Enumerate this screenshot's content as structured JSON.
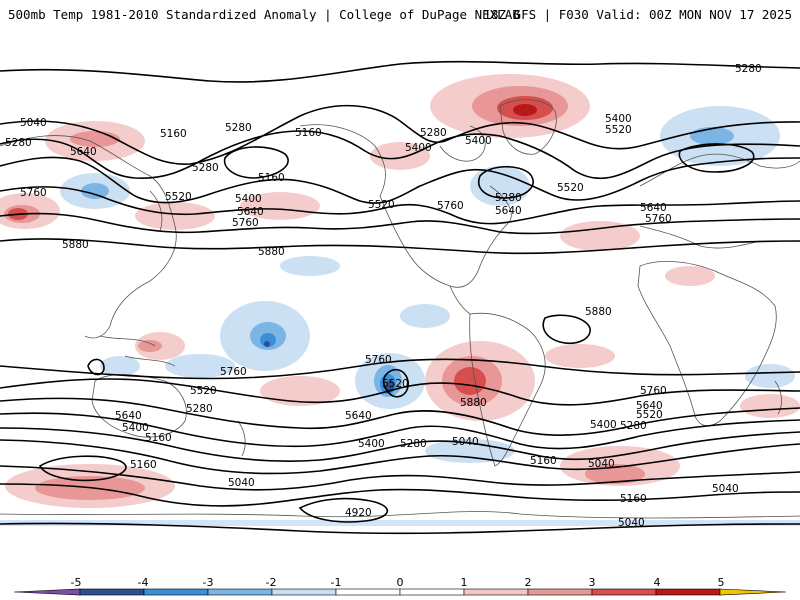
{
  "header": {
    "title_left": "500mb Temp 1981-2010 Standardized Anomaly | College of DuPage NEXLAB",
    "title_right": "18Z GFS | F030 Valid: 00Z MON NOV 17 2025"
  },
  "map": {
    "contour_labels": [
      "5280",
      "5040",
      "5280",
      "5160",
      "5280",
      "5160",
      "5640",
      "5280",
      "5160",
      "5760",
      "5520",
      "5400",
      "5640",
      "5760",
      "5880",
      "5880",
      "5280",
      "5400",
      "5400",
      "5280",
      "5520",
      "5760",
      "5640",
      "5400",
      "5520",
      "5520",
      "5640",
      "5760",
      "5880",
      "5760",
      "5760",
      "5520",
      "5520",
      "5280",
      "5640",
      "5640",
      "5400",
      "5160",
      "5400",
      "5280",
      "5040",
      "5880",
      "5160",
      "5040",
      "4920",
      "5760",
      "5640",
      "5520",
      "5400",
      "5280",
      "5160",
      "5040",
      "5160",
      "5040",
      "5040"
    ],
    "colors": {
      "neg5": "#7b4fa8",
      "neg4": "#2d4f8f",
      "neg3": "#3a8fd8",
      "neg2": "#7ab5e6",
      "neg1": "#c7ddf2",
      "zero": "#ffffff",
      "pos1": "#f3c7c7",
      "pos2": "#e89696",
      "pos3": "#d64e4e",
      "pos4": "#b81818",
      "pos5": "#7a0a0a",
      "extreme": "#f5c400"
    }
  },
  "colorbar": {
    "ticks": [
      "-5",
      "-4",
      "-3",
      "-2",
      "-1",
      "0",
      "1",
      "2",
      "3",
      "4",
      "5"
    ]
  }
}
